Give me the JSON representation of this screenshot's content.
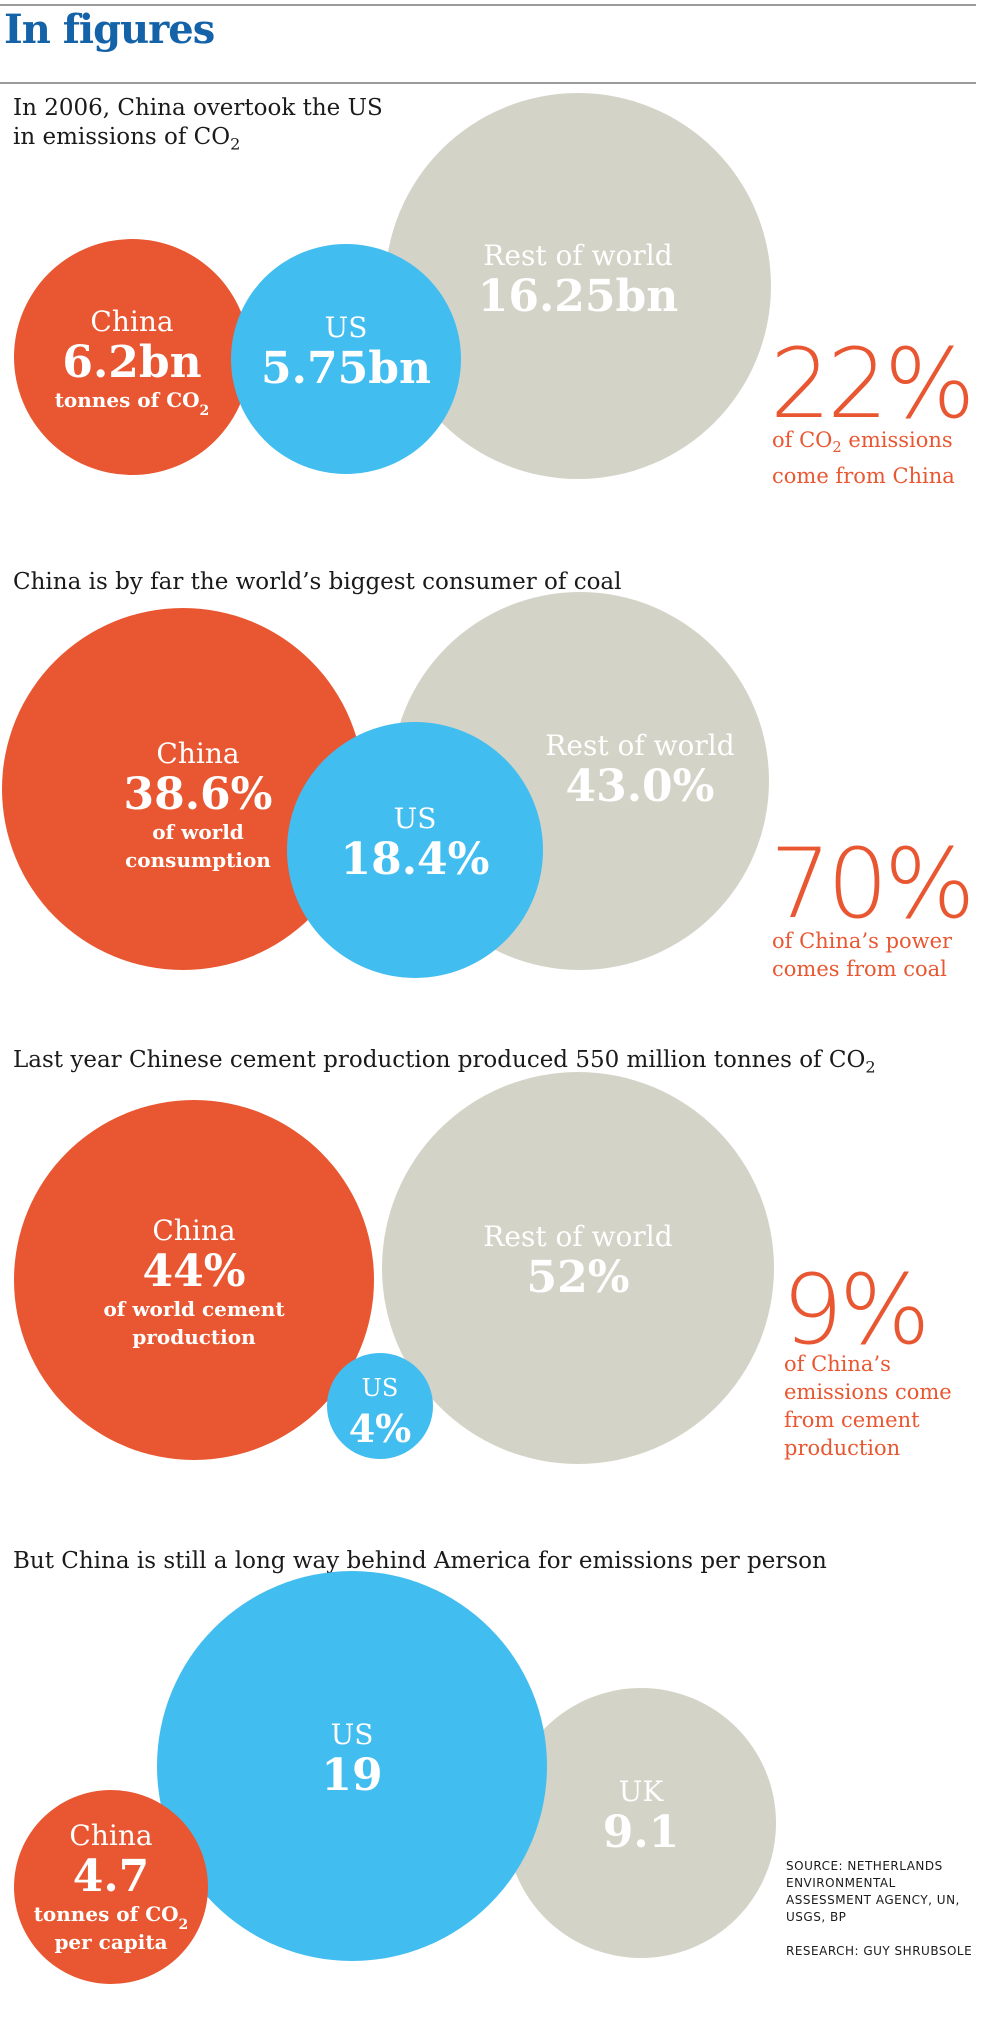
{
  "page_title": "In figures",
  "colors": {
    "china": "#e85731",
    "us": "#42bdf0",
    "world": "#d3d3c7",
    "title": "#1462a8",
    "stat": "#e85731"
  },
  "chart_data": [
    {
      "type": "bubble",
      "title": "In 2006, China overtook the US in emissions of CO2",
      "unit": "tonnes of CO2",
      "circles": [
        {
          "name": "China",
          "value": 6.2,
          "label": "6.2bn",
          "note": "tonnes of CO2"
        },
        {
          "name": "US",
          "value": 5.75,
          "label": "5.75bn"
        },
        {
          "name": "Rest of world",
          "value": 16.25,
          "label": "16.25bn"
        }
      ],
      "stat": {
        "value": "22%",
        "text": [
          "of CO2 emissions",
          "come from China"
        ]
      }
    },
    {
      "type": "bubble",
      "title": "China is by far the world’s biggest consumer of coal",
      "circles": [
        {
          "name": "China",
          "value": 38.6,
          "label": "38.6%",
          "note": [
            "of world",
            "consumption"
          ]
        },
        {
          "name": "US",
          "value": 18.4,
          "label": "18.4%"
        },
        {
          "name": "Rest of world",
          "value": 43.0,
          "label": "43.0%"
        }
      ],
      "stat": {
        "value": "70%",
        "text": [
          "of China’s power",
          "comes from coal"
        ]
      }
    },
    {
      "type": "bubble",
      "title": "Last year Chinese cement production produced 550 million tonnes of CO2",
      "circles": [
        {
          "name": "China",
          "value": 44,
          "label": "44%",
          "note": [
            "of world cement",
            "production"
          ]
        },
        {
          "name": "US",
          "value": 4,
          "label": "4%"
        },
        {
          "name": "Rest of world",
          "value": 52,
          "label": "52%"
        }
      ],
      "stat": {
        "value": "9%",
        "text": [
          "of China’s",
          "emissions come",
          "from cement",
          "production"
        ]
      }
    },
    {
      "type": "bubble",
      "title": "But China is still a long way behind America for emissions per person",
      "circles": [
        {
          "name": "China",
          "value": 4.7,
          "label": "4.7",
          "note": [
            "tonnes of CO2",
            "per capita"
          ]
        },
        {
          "name": "US",
          "value": 19,
          "label": "19"
        },
        {
          "name": "UK",
          "value": 9.1,
          "label": "9.1"
        }
      ]
    }
  ],
  "source": "SOURCE: NETHERLANDS ENVIRONMENTAL ASSESSMENT AGENCY, UN, USGS, BP",
  "research": "RESEARCH: GUY SHRUBSOLE"
}
